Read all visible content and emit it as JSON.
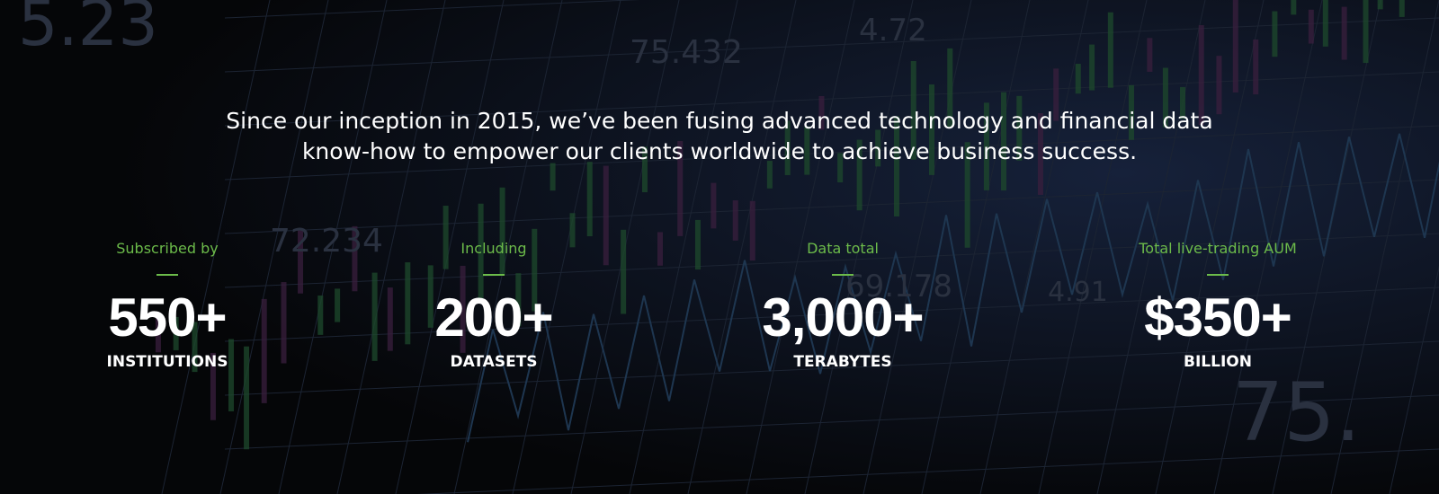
{
  "intro": {
    "lines": [
      "Since our inception in 2015, we’ve been fusing advanced technology and financial data",
      "know-how to empower our clients worldwide to achieve business success."
    ]
  },
  "stats": [
    {
      "label": "Subscribed by",
      "value": "550+",
      "unit": "INSTITUTIONS"
    },
    {
      "label": "Including",
      "value": "200+",
      "unit": "DATASETS"
    },
    {
      "label": "Data total",
      "value": "3,000+",
      "unit": "TERABYTES"
    },
    {
      "label": "Total live-trading AUM",
      "value": "$350+",
      "unit": "BILLION"
    }
  ],
  "background": {
    "labels": [
      "5.23",
      "75.432",
      "4.72",
      "72.234",
      "69.178",
      "4.91",
      "75."
    ]
  }
}
